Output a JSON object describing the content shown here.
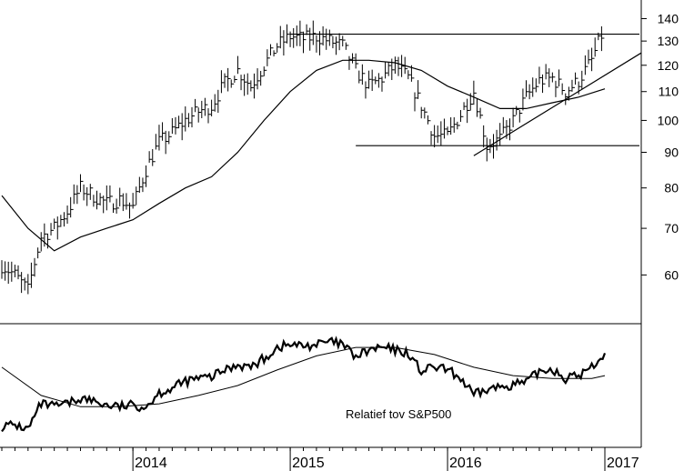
{
  "chart_data": [
    {
      "type": "ohlc",
      "scale": "log",
      "ylim": [
        52,
        148
      ],
      "y_ticks": [
        60,
        70,
        80,
        90,
        100,
        110,
        120,
        130,
        140
      ],
      "x_range": [
        "2013-03",
        "2017-01"
      ],
      "x_ticks": [
        "2014",
        "2015",
        "2016",
        "2017"
      ],
      "price": {
        "x": [
          "2013-03",
          "2013-04",
          "2013-05",
          "2013-06",
          "2013-07",
          "2013-08",
          "2013-09",
          "2013-10",
          "2013-11",
          "2013-12",
          "2014-01",
          "2014-02",
          "2014-03",
          "2014-04",
          "2014-05",
          "2014-06",
          "2014-07",
          "2014-08",
          "2014-09",
          "2014-10",
          "2014-11",
          "2014-12",
          "2015-01",
          "2015-02",
          "2015-03",
          "2015-04",
          "2015-05",
          "2015-06",
          "2015-07",
          "2015-08",
          "2015-09",
          "2015-10",
          "2015-11",
          "2015-12",
          "2016-01",
          "2016-02",
          "2016-03",
          "2016-04",
          "2016-05",
          "2016-06",
          "2016-07",
          "2016-08",
          "2016-09",
          "2016-10",
          "2016-11",
          "2016-12",
          "2017-01"
        ],
        "close": [
          62,
          60,
          57,
          68,
          70,
          74,
          80,
          78,
          76,
          77,
          75,
          85,
          93,
          96,
          100,
          103,
          105,
          113,
          118,
          112,
          120,
          128,
          132,
          131,
          132,
          130,
          128,
          118,
          112,
          115,
          120,
          115,
          105,
          95,
          95,
          102,
          110,
          92,
          94,
          100,
          108,
          114,
          115,
          110,
          114,
          122,
          136
        ]
      },
      "moving_average": {
        "x": [
          "2013-03",
          "2013-05",
          "2013-07",
          "2013-09",
          "2013-11",
          "2014-01",
          "2014-03",
          "2014-05",
          "2014-07",
          "2014-09",
          "2014-11",
          "2015-01",
          "2015-03",
          "2015-05",
          "2015-07",
          "2015-09",
          "2015-11",
          "2016-01",
          "2016-03",
          "2016-05",
          "2016-07",
          "2016-09",
          "2016-11",
          "2017-01"
        ],
        "values": [
          78,
          70,
          65,
          68,
          70,
          72,
          76,
          80,
          83,
          90,
          100,
          110,
          118,
          122,
          122,
          121,
          118,
          112,
          108,
          104,
          104,
          106,
          108,
          111
        ]
      },
      "lines": [
        {
          "kind": "resistance",
          "x": [
            "2015-01",
            "2017-01"
          ],
          "y": [
            133,
            133
          ]
        },
        {
          "kind": "support",
          "x": [
            "2015-06",
            "2017-01"
          ],
          "y": [
            92,
            92
          ]
        },
        {
          "kind": "trendline",
          "x": [
            "2016-03",
            "2017-01"
          ],
          "y": [
            89,
            125
          ]
        }
      ]
    },
    {
      "type": "line",
      "annotation": "Relatief tov S&P500",
      "x_ticks": [
        "2014",
        "2015",
        "2016",
        "2017"
      ],
      "series": [
        {
          "x": [
            "2013-03",
            "2013-04",
            "2013-05",
            "2013-06",
            "2013-07",
            "2013-08",
            "2013-09",
            "2013-10",
            "2013-11",
            "2013-12",
            "2014-01",
            "2014-02",
            "2014-03",
            "2014-04",
            "2014-05",
            "2014-06",
            "2014-07",
            "2014-08",
            "2014-09",
            "2014-10",
            "2014-11",
            "2014-12",
            "2015-01",
            "2015-02",
            "2015-03",
            "2015-04",
            "2015-05",
            "2015-06",
            "2015-07",
            "2015-08",
            "2015-09",
            "2015-10",
            "2015-11",
            "2015-12",
            "2016-01",
            "2016-02",
            "2016-03",
            "2016-04",
            "2016-05",
            "2016-06",
            "2016-07",
            "2016-08",
            "2016-09",
            "2016-10",
            "2016-11",
            "2016-12",
            "2017-01"
          ],
          "values": [
            16,
            17,
            14,
            32,
            30,
            32,
            36,
            34,
            31,
            30,
            31,
            30,
            40,
            43,
            48,
            50,
            51,
            56,
            60,
            58,
            64,
            72,
            74,
            73,
            74,
            76,
            74,
            65,
            70,
            72,
            70,
            68,
            55,
            58,
            56,
            50,
            38,
            42,
            44,
            46,
            47,
            55,
            57,
            50,
            52,
            58,
            68
          ]
        },
        {
          "x": [
            "2013-03",
            "2013-06",
            "2013-09",
            "2013-12",
            "2014-03",
            "2014-06",
            "2014-09",
            "2014-12",
            "2015-03",
            "2015-06",
            "2015-09",
            "2015-12",
            "2016-03",
            "2016-06",
            "2016-09",
            "2016-12",
            "2017-01"
          ],
          "values": [
            58,
            38,
            30,
            30,
            32,
            38,
            45,
            56,
            66,
            72,
            72,
            67,
            58,
            52,
            50,
            50,
            52
          ]
        }
      ]
    }
  ]
}
